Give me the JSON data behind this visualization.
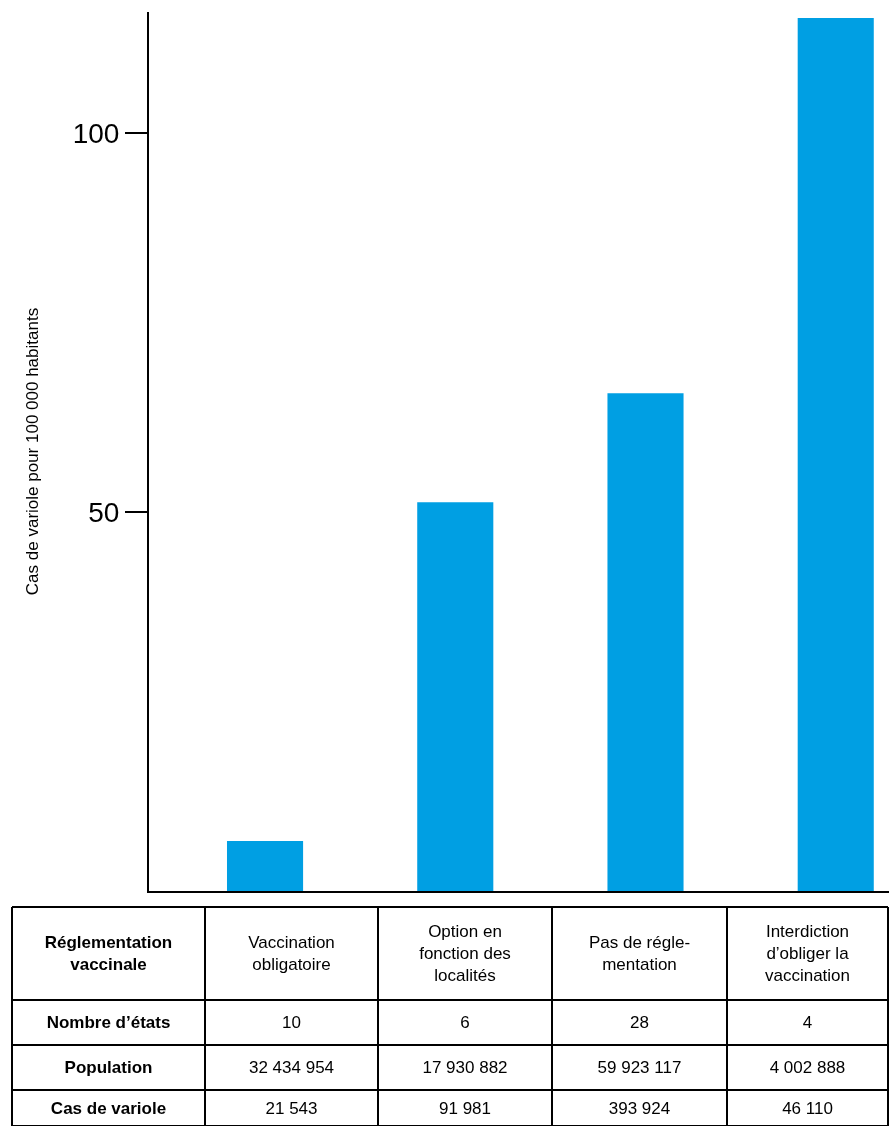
{
  "chart_data": {
    "type": "bar",
    "ylabel": "Cas de variole pour 100 000 habitants",
    "xlabel": "Réglementation vaccinale",
    "categories": [
      "Vaccination obligatoire",
      "Option en fonction des localités",
      "Pas de régle-mentation",
      "Interdiction d’obliger la vaccination"
    ],
    "values": [
      6.6,
      51.3,
      65.7,
      115.2
    ],
    "color": "#009fe3",
    "ylim": [
      0,
      116
    ],
    "yticks": [
      50,
      100
    ],
    "grid": false,
    "legend": false,
    "tick_labels": "y",
    "annotations": [
      "Nombre d’états",
      "10",
      "6",
      "28",
      "4",
      "Population",
      "32 434 954",
      "17 930 882",
      "59 923 117",
      "4 002 888",
      "Cas de variole",
      "21 543",
      "91 981",
      "393 924",
      "46 110"
    ]
  }
}
